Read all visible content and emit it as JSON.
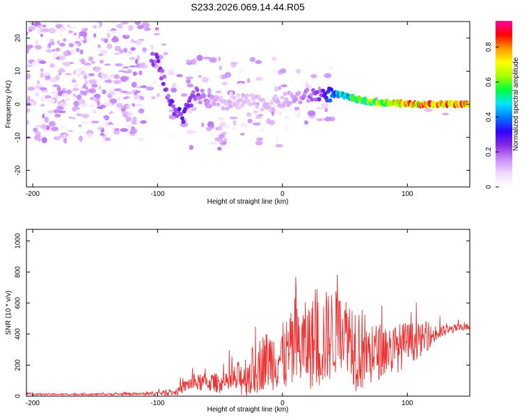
{
  "figure_title": "S233.2026.069.14.44.R05",
  "chart_data": [
    {
      "type": "heatmap",
      "title": "S233.2026.069.14.44.R05",
      "xlabel": "Height of straight line (km)",
      "ylabel": "Frequency (Hz)",
      "xlim": [
        -205,
        150
      ],
      "ylim": [
        -25,
        25
      ],
      "xticks": [
        -200,
        -100,
        0,
        100
      ],
      "yticks": [
        -20,
        -10,
        0,
        10,
        20
      ],
      "colorbar": {
        "label": "Normalized spectral amplitude",
        "range": [
          0,
          0.95
        ],
        "ticks": [
          0,
          0.2,
          0.4,
          0.6,
          0.8
        ],
        "colormap": [
          "#ffffff",
          "#f2d8ff",
          "#c98cff",
          "#8a2be2",
          "#3300ff",
          "#0077ff",
          "#00e5ff",
          "#00ff40",
          "#a8ff00",
          "#ffff00",
          "#ff9900",
          "#ff0000",
          "#ff00aa"
        ]
      },
      "ridge": {
        "x": [
          -100,
          -90,
          -80,
          -70,
          -50,
          -30,
          -10,
          10,
          30,
          45,
          60,
          75,
          90,
          110,
          130,
          150
        ],
        "f": [
          14,
          0,
          -4,
          3,
          0,
          1,
          0,
          2,
          3,
          3,
          1.5,
          0.5,
          0.3,
          0,
          0,
          0
        ],
        "amp": [
          0.25,
          0.25,
          0.3,
          0.25,
          0.12,
          0.12,
          0.12,
          0.15,
          0.25,
          0.5,
          0.6,
          0.72,
          0.78,
          0.86,
          0.9,
          0.92
        ]
      }
    },
    {
      "type": "line",
      "xlabel": "Height of straight line (km)",
      "ylabel": "SNR (10 * v/v)",
      "xlim": [
        -205,
        150
      ],
      "ylim": [
        0,
        1075
      ],
      "xticks": [
        -200,
        -100,
        0,
        100
      ],
      "yticks": [
        0,
        200,
        400,
        600,
        800,
        1000
      ],
      "color": "#f03030",
      "envelope": {
        "x": [
          -205,
          -150,
          -110,
          -85,
          -75,
          -60,
          -45,
          -25,
          -15,
          0,
          10,
          20,
          30,
          40,
          50,
          55,
          60,
          65,
          70,
          80,
          90,
          100,
          110,
          120,
          130,
          140,
          150
        ],
        "base": [
          12,
          12,
          15,
          25,
          80,
          90,
          80,
          150,
          230,
          250,
          300,
          330,
          350,
          400,
          430,
          380,
          320,
          300,
          260,
          300,
          300,
          340,
          360,
          390,
          420,
          440,
          450
        ],
        "amp": [
          12,
          10,
          15,
          40,
          90,
          110,
          120,
          300,
          340,
          400,
          500,
          520,
          580,
          550,
          400,
          520,
          560,
          480,
          380,
          320,
          300,
          260,
          200,
          120,
          70,
          45,
          40
        ]
      }
    }
  ]
}
